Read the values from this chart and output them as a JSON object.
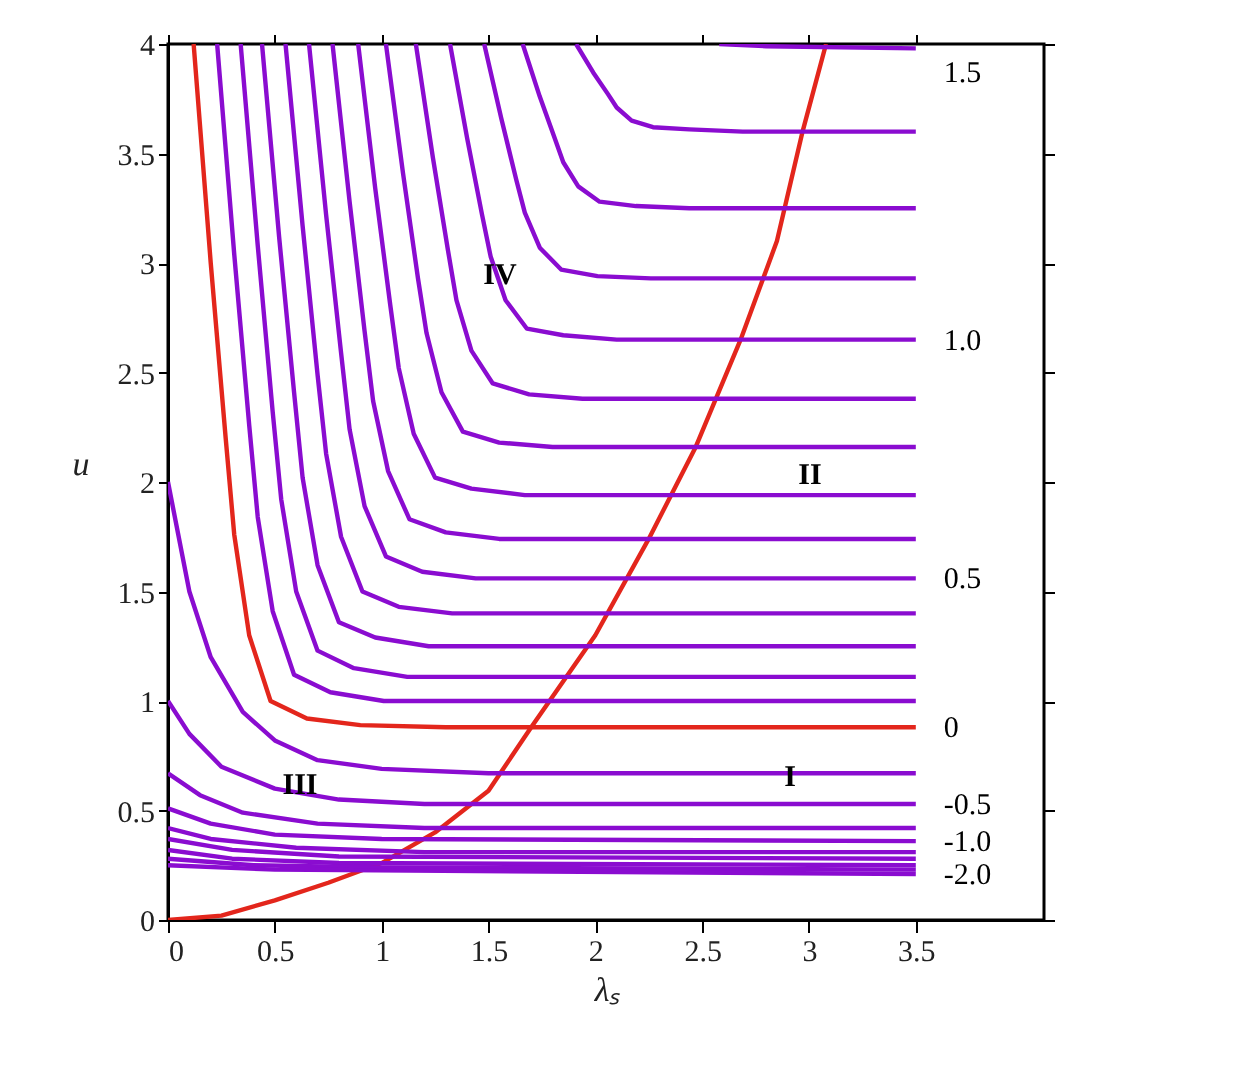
{
  "chart_data": {
    "type": "line",
    "xlabel": "λₛ",
    "ylabel": "u",
    "xlim": [
      0,
      4.1
    ],
    "ylim": [
      0,
      4
    ],
    "xticks": [
      0,
      0.5,
      1,
      1.5,
      2,
      2.5,
      3,
      3.5
    ],
    "yticks": [
      0,
      0.5,
      1,
      1.5,
      2,
      2.5,
      3,
      3.5,
      4
    ],
    "grid": false,
    "legend": false,
    "marker": "none",
    "line_style": "solid",
    "series": [
      {
        "name": "0",
        "color": "#e3261c",
        "x": [
          0.12,
          0.2,
          0.27,
          0.31,
          0.38,
          0.48,
          0.65,
          0.9,
          1.3,
          3.5
        ],
        "values": [
          4,
          3,
          2.2,
          1.76,
          1.3,
          1.0,
          0.92,
          0.89,
          0.88,
          0.88
        ]
      },
      {
        "color": "#e3261c",
        "x": [
          0,
          0.25,
          0.5,
          0.75,
          1.0,
          1.25,
          1.5,
          1.7,
          2.0,
          2.25,
          2.47,
          2.68,
          2.85,
          2.97,
          3.08
        ],
        "values": [
          0,
          0.02,
          0.09,
          0.17,
          0.26,
          0.4,
          0.59,
          0.88,
          1.3,
          1.74,
          2.16,
          2.65,
          3.1,
          3.6,
          4.0
        ]
      },
      {
        "color": "#8a0cd0",
        "x": [
          0.23,
          0.31,
          0.38,
          0.42,
          0.49,
          0.59,
          0.76,
          1.01,
          3.5
        ],
        "values": [
          4,
          3.04,
          2.26,
          1.84,
          1.41,
          1.12,
          1.04,
          1.0,
          1.0
        ]
      },
      {
        "color": "#8a0cd0",
        "x": [
          0.34,
          0.42,
          0.49,
          0.53,
          0.6,
          0.7,
          0.87,
          1.12,
          3.5
        ],
        "values": [
          4,
          3.08,
          2.32,
          1.92,
          1.5,
          1.23,
          1.15,
          1.11,
          1.11
        ]
      },
      {
        "color": "#8a0cd0",
        "x": [
          0.44,
          0.52,
          0.59,
          0.63,
          0.7,
          0.8,
          0.97,
          1.22,
          3.5
        ],
        "values": [
          4,
          3.12,
          2.41,
          2.02,
          1.62,
          1.36,
          1.29,
          1.25,
          1.25
        ]
      },
      {
        "color": "#8a0cd0",
        "x": [
          0.55,
          0.63,
          0.7,
          0.74,
          0.81,
          0.91,
          1.08,
          1.33,
          3.5
        ],
        "values": [
          4,
          3.17,
          2.49,
          2.13,
          1.75,
          1.5,
          1.43,
          1.4,
          1.4
        ]
      },
      {
        "name": "0.5",
        "color": "#8a0cd0",
        "x": [
          0.66,
          0.74,
          0.81,
          0.85,
          0.92,
          1.02,
          1.19,
          1.44,
          3.5
        ],
        "values": [
          4,
          3.22,
          2.59,
          2.24,
          1.89,
          1.66,
          1.59,
          1.56,
          1.56
        ]
      },
      {
        "color": "#8a0cd0",
        "x": [
          0.77,
          0.85,
          0.92,
          0.96,
          1.03,
          1.13,
          1.3,
          1.55,
          3.5
        ],
        "values": [
          4,
          3.28,
          2.69,
          2.37,
          2.05,
          1.83,
          1.77,
          1.74,
          1.74
        ]
      },
      {
        "color": "#8a0cd0",
        "x": [
          0.89,
          0.97,
          1.04,
          1.08,
          1.15,
          1.25,
          1.42,
          1.67,
          3.5
        ],
        "values": [
          4,
          3.34,
          2.81,
          2.52,
          2.22,
          2.02,
          1.97,
          1.94,
          1.94
        ]
      },
      {
        "color": "#8a0cd0",
        "x": [
          1.02,
          1.1,
          1.17,
          1.21,
          1.28,
          1.38,
          1.55,
          1.8,
          3.5
        ],
        "values": [
          4,
          3.41,
          2.93,
          2.68,
          2.41,
          2.23,
          2.18,
          2.16,
          2.16
        ]
      },
      {
        "color": "#8a0cd0",
        "x": [
          1.16,
          1.24,
          1.31,
          1.35,
          1.42,
          1.52,
          1.69,
          1.94,
          3.5
        ],
        "values": [
          4,
          3.48,
          3.06,
          2.83,
          2.6,
          2.45,
          2.4,
          2.38,
          2.38
        ]
      },
      {
        "name": "1.0",
        "color": "#8a0cd0",
        "x": [
          1.32,
          1.4,
          1.47,
          1.51,
          1.58,
          1.68,
          1.85,
          2.1,
          3.5
        ],
        "values": [
          4,
          3.57,
          3.22,
          3.03,
          2.83,
          2.7,
          2.67,
          2.65,
          2.65
        ]
      },
      {
        "color": "#8a0cd0",
        "x": [
          1.48,
          1.56,
          1.63,
          1.67,
          1.74,
          1.84,
          2.01,
          2.26,
          3.5
        ],
        "values": [
          4,
          3.66,
          3.38,
          3.23,
          3.07,
          2.97,
          2.94,
          2.93,
          2.93
        ]
      },
      {
        "color": "#8a0cd0",
        "x": [
          1.66,
          1.74,
          1.81,
          1.85,
          1.92,
          2.02,
          2.19,
          2.44,
          3.5
        ],
        "values": [
          4,
          3.76,
          3.57,
          3.46,
          3.35,
          3.28,
          3.26,
          3.25,
          3.25
        ]
      },
      {
        "color": "#8a0cd0",
        "x": [
          1.91,
          1.99,
          2.06,
          2.1,
          2.17,
          2.27,
          2.44,
          2.69,
          3.5
        ],
        "values": [
          4,
          3.87,
          3.77,
          3.71,
          3.65,
          3.62,
          3.61,
          3.6,
          3.6
        ]
      },
      {
        "name": "1.5",
        "color": "#8a0cd0",
        "x": [
          2.58,
          2.8,
          3.5
        ],
        "values": [
          4,
          3.99,
          3.98
        ]
      },
      {
        "color": "#8a0cd0",
        "x": [
          0,
          0.1,
          0.2,
          0.35,
          0.5,
          0.7,
          1.0,
          1.5,
          3.5
        ],
        "values": [
          2.0,
          1.5,
          1.2,
          0.95,
          0.82,
          0.73,
          0.69,
          0.67,
          0.67
        ]
      },
      {
        "name": "-0.5",
        "color": "#8a0cd0",
        "x": [
          0,
          0.1,
          0.25,
          0.5,
          0.8,
          1.2,
          3.5
        ],
        "values": [
          1.0,
          0.85,
          0.7,
          0.6,
          0.55,
          0.53,
          0.53
        ]
      },
      {
        "color": "#8a0cd0",
        "x": [
          0,
          0.15,
          0.35,
          0.7,
          1.2,
          3.5
        ],
        "values": [
          0.67,
          0.57,
          0.49,
          0.44,
          0.42,
          0.42
        ]
      },
      {
        "name": "-1.0",
        "color": "#8a0cd0",
        "x": [
          0,
          0.2,
          0.5,
          1.0,
          3.5
        ],
        "values": [
          0.51,
          0.44,
          0.39,
          0.37,
          0.36
        ]
      },
      {
        "color": "#8a0cd0",
        "x": [
          0,
          0.2,
          0.6,
          1.2,
          3.5
        ],
        "values": [
          0.42,
          0.37,
          0.33,
          0.31,
          0.31
        ]
      },
      {
        "color": "#8a0cd0",
        "x": [
          0,
          0.3,
          0.8,
          3.5
        ],
        "values": [
          0.37,
          0.32,
          0.29,
          0.28
        ]
      },
      {
        "color": "#8a0cd0",
        "x": [
          0,
          0.3,
          0.8,
          3.5
        ],
        "values": [
          0.32,
          0.28,
          0.26,
          0.25
        ]
      },
      {
        "color": "#8a0cd0",
        "x": [
          0,
          0.4,
          1.0,
          3.5
        ],
        "values": [
          0.28,
          0.25,
          0.24,
          0.23
        ]
      },
      {
        "name": "-2.0",
        "color": "#8a0cd0",
        "x": [
          0,
          0.5,
          3.5
        ],
        "values": [
          0.25,
          0.23,
          0.21
        ]
      }
    ],
    "annotations": [
      "IV",
      "II",
      "III",
      "I"
    ]
  }
}
